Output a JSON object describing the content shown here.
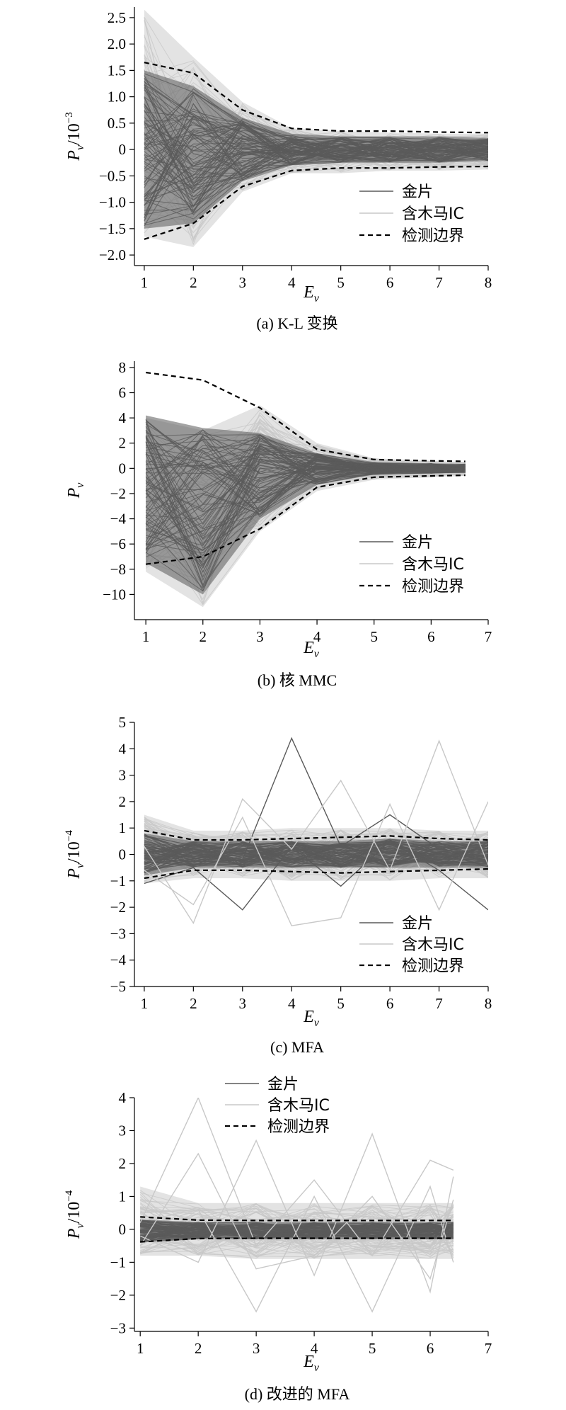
{
  "colors": {
    "gold": "#5a5a5a",
    "trojan": "#c8c8c8",
    "boundary": "#000000"
  },
  "legend_labels": {
    "gold": "金片",
    "trojan": "含木马IC",
    "boundary": "检测边界"
  },
  "chart_data": [
    {
      "type": "line",
      "caption": "(a) K-L 变换",
      "xlabel": "E",
      "xlabel_sub": "v",
      "ylabel": "P",
      "ylabel_sub": "v",
      "ylabel_suffix": "/10",
      "ylabel_exp": "−3",
      "xlim": [
        0.8,
        8
      ],
      "ylim": [
        -2.2,
        2.7
      ],
      "xticks": [
        1,
        2,
        3,
        4,
        5,
        6,
        7,
        8
      ],
      "yticks": [
        -2.0,
        -1.5,
        -1.0,
        -0.5,
        0,
        0.5,
        1.0,
        1.5,
        2.0,
        2.5
      ],
      "ytick_labels": [
        "−2.0",
        "−1.5",
        "−1.0",
        "−0.5",
        "0",
        "0.5",
        "1.0",
        "1.5",
        "2.0",
        "2.5"
      ],
      "legend_position": "lower-right",
      "series": [
        {
          "name": "检测边界",
          "style": "dashed",
          "x": [
            1,
            2,
            3,
            4,
            5,
            6,
            7,
            8
          ],
          "y": [
            1.65,
            1.45,
            0.75,
            0.4,
            0.35,
            0.35,
            0.33,
            0.32
          ]
        },
        {
          "name": "检测边界",
          "style": "dashed",
          "x": [
            1,
            2,
            3,
            4,
            5,
            6,
            7,
            8
          ],
          "y": [
            -1.7,
            -1.4,
            -0.7,
            -0.4,
            -0.35,
            -0.35,
            -0.33,
            -0.32
          ]
        },
        {
          "name": "金片",
          "style": "envelope",
          "x": [
            1,
            2,
            3,
            4,
            5,
            6,
            7,
            8
          ],
          "y_upper": [
            1.5,
            1.2,
            0.6,
            0.3,
            0.25,
            0.25,
            0.25,
            0.22
          ],
          "y_lower": [
            -1.5,
            -1.4,
            -0.6,
            -0.3,
            -0.25,
            -0.25,
            -0.25,
            -0.22
          ]
        },
        {
          "name": "含木马IC",
          "style": "envelope",
          "x": [
            1,
            2,
            3,
            4,
            5,
            6,
            7,
            8
          ],
          "y_upper": [
            2.65,
            1.75,
            0.9,
            0.4,
            0.35,
            0.32,
            0.3,
            0.3
          ],
          "y_lower": [
            -1.65,
            -1.85,
            -0.8,
            -0.45,
            -0.45,
            -0.4,
            -0.4,
            -0.38
          ]
        }
      ]
    },
    {
      "type": "line",
      "caption": "(b) 核 MMC",
      "xlabel": "E",
      "xlabel_sub": "v",
      "ylabel": "P",
      "ylabel_sub": "v",
      "ylabel_suffix": "",
      "ylabel_exp": "",
      "xlim": [
        0.8,
        7
      ],
      "ylim": [
        -12,
        8.5
      ],
      "xticks": [
        1,
        2,
        3,
        4,
        5,
        6,
        7
      ],
      "yticks": [
        -10,
        -8,
        -6,
        -4,
        -2,
        0,
        2,
        4,
        6,
        8
      ],
      "ytick_labels": [
        "−10",
        "−8",
        "−6",
        "−4",
        "−2",
        "0",
        "2",
        "4",
        "6",
        "8"
      ],
      "legend_position": "lower-right",
      "series": [
        {
          "name": "检测边界",
          "style": "dashed",
          "x": [
            1,
            2,
            3,
            4,
            5,
            6,
            6.6
          ],
          "y": [
            7.6,
            7.0,
            4.8,
            1.5,
            0.7,
            0.6,
            0.55
          ]
        },
        {
          "name": "检测边界",
          "style": "dashed",
          "x": [
            1,
            2,
            3,
            4,
            5,
            6,
            6.6
          ],
          "y": [
            -7.6,
            -7.0,
            -4.8,
            -1.5,
            -0.7,
            -0.6,
            -0.55
          ]
        },
        {
          "name": "金片",
          "style": "envelope",
          "x": [
            1,
            2,
            3,
            4,
            5,
            6,
            6.6
          ],
          "y_upper": [
            4.2,
            3.2,
            2.8,
            1.2,
            0.5,
            0.4,
            0.35
          ],
          "y_lower": [
            -7.5,
            -10.0,
            -4.0,
            -1.3,
            -0.5,
            -0.4,
            -0.35
          ]
        },
        {
          "name": "含木马IC",
          "style": "envelope",
          "x": [
            1,
            2,
            3,
            4,
            5,
            6,
            6.6
          ],
          "y_upper": [
            4.0,
            3.0,
            5.0,
            2.0,
            0.8,
            0.6,
            0.5
          ],
          "y_lower": [
            -8.2,
            -11.0,
            -5.0,
            -1.8,
            -0.9,
            -0.7,
            -0.6
          ]
        }
      ]
    },
    {
      "type": "line",
      "caption": "(c) MFA",
      "xlabel": "E",
      "xlabel_sub": "v",
      "ylabel": "P",
      "ylabel_sub": "v",
      "ylabel_suffix": "/10",
      "ylabel_exp": "−4",
      "xlim": [
        0.8,
        8
      ],
      "ylim": [
        -5,
        5
      ],
      "xticks": [
        1,
        2,
        3,
        4,
        5,
        6,
        7,
        8
      ],
      "yticks": [
        -5,
        -4,
        -3,
        -2,
        -1,
        0,
        1,
        2,
        3,
        4,
        5
      ],
      "ytick_labels": [
        "−5",
        "−4",
        "−3",
        "−2",
        "−1",
        "0",
        "1",
        "2",
        "3",
        "4",
        "5"
      ],
      "legend_position": "lower-right",
      "series": [
        {
          "name": "检测边界",
          "style": "dashed",
          "x": [
            1,
            2,
            3,
            4,
            5,
            6,
            7,
            8
          ],
          "y": [
            0.9,
            0.55,
            0.55,
            0.6,
            0.65,
            0.7,
            0.6,
            0.55
          ]
        },
        {
          "name": "检测边界",
          "style": "dashed",
          "x": [
            1,
            2,
            3,
            4,
            5,
            6,
            7,
            8
          ],
          "y": [
            -0.9,
            -0.6,
            -0.6,
            -0.65,
            -0.7,
            -0.65,
            -0.6,
            -0.55
          ]
        },
        {
          "name": "金片",
          "style": "envelope",
          "x": [
            1,
            2,
            3,
            4,
            5,
            6,
            7,
            8
          ],
          "y_upper": [
            0.8,
            0.5,
            0.5,
            0.5,
            0.5,
            0.6,
            0.5,
            0.5
          ],
          "y_lower": [
            -0.8,
            -0.5,
            -0.5,
            -0.5,
            -0.5,
            -0.5,
            -0.5,
            -0.5
          ]
        },
        {
          "name": "含木马IC",
          "style": "envelope",
          "x": [
            1,
            2,
            3,
            4,
            5,
            6,
            7,
            8
          ],
          "y_upper": [
            1.5,
            0.9,
            0.9,
            1.0,
            1.0,
            1.0,
            0.9,
            0.9
          ],
          "y_lower": [
            -1.1,
            -0.9,
            -0.9,
            -1.0,
            -1.0,
            -1.0,
            -0.9,
            -0.9
          ]
        },
        {
          "name": "金片",
          "style": "line",
          "x": [
            1,
            2,
            3,
            4,
            5,
            6,
            7,
            8
          ],
          "y": [
            0.1,
            0.2,
            -0.2,
            4.4,
            0.3,
            1.5,
            0.2,
            0.5
          ]
        },
        {
          "name": "金片",
          "style": "line",
          "x": [
            1,
            2,
            3,
            4,
            5,
            6,
            7,
            8
          ],
          "y": [
            -1.1,
            -0.5,
            -2.1,
            0.3,
            -1.2,
            0.5,
            -0.6,
            -2.1
          ]
        },
        {
          "name": "含木马IC",
          "style": "line",
          "x": [
            1,
            2,
            3,
            4,
            5,
            6,
            7,
            8
          ],
          "y": [
            0.3,
            -2.6,
            2.1,
            0.2,
            2.8,
            -0.6,
            4.3,
            -0.4
          ]
        },
        {
          "name": "含木马IC",
          "style": "line",
          "x": [
            1,
            2,
            3,
            4,
            5,
            6,
            7,
            8
          ],
          "y": [
            -0.6,
            -1.9,
            1.4,
            -2.7,
            -2.4,
            1.9,
            -2.1,
            2.0
          ]
        }
      ]
    },
    {
      "type": "line",
      "caption": "(d) 改进的 MFA",
      "xlabel": "E",
      "xlabel_sub": "v",
      "ylabel": "P",
      "ylabel_sub": "v",
      "ylabel_suffix": "/10",
      "ylabel_exp": "−4",
      "xlim": [
        0.9,
        7
      ],
      "ylim": [
        -3.1,
        4
      ],
      "xticks": [
        1,
        2,
        3,
        4,
        5,
        6,
        7
      ],
      "yticks": [
        -3,
        -2,
        -1,
        0,
        1,
        2,
        3,
        4
      ],
      "ytick_labels": [
        "−3",
        "−2",
        "−1",
        "0",
        "1",
        "2",
        "3",
        "4"
      ],
      "legend_position": "top-center",
      "series": [
        {
          "name": "检测边界",
          "style": "dashed",
          "x": [
            1,
            2,
            3,
            4,
            5,
            6,
            6.4
          ],
          "y": [
            0.38,
            0.28,
            0.27,
            0.27,
            0.27,
            0.27,
            0.27
          ]
        },
        {
          "name": "检测边界",
          "style": "dashed",
          "x": [
            1,
            2,
            3,
            4,
            5,
            6,
            6.4
          ],
          "y": [
            -0.38,
            -0.28,
            -0.27,
            -0.27,
            -0.27,
            -0.27,
            -0.27
          ]
        },
        {
          "name": "含木马IC",
          "style": "envelope",
          "x": [
            1,
            2,
            3,
            4,
            5,
            6,
            6.4
          ],
          "y_upper": [
            1.3,
            0.8,
            0.8,
            0.8,
            0.8,
            0.8,
            0.8
          ],
          "y_lower": [
            -0.8,
            -0.8,
            -0.9,
            -0.9,
            -0.9,
            -0.9,
            -0.9
          ]
        },
        {
          "name": "金片",
          "style": "envelope",
          "x": [
            1,
            2,
            3,
            4,
            5,
            6,
            6.4
          ],
          "y_upper": [
            0.3,
            0.22,
            0.22,
            0.22,
            0.22,
            0.22,
            0.22
          ],
          "y_lower": [
            -0.4,
            -0.3,
            -0.3,
            -0.3,
            -0.3,
            -0.3,
            -0.3
          ]
        },
        {
          "name": "含木马IC",
          "style": "line",
          "x": [
            1,
            2,
            3,
            4,
            5,
            6,
            6.4
          ],
          "y": [
            0.2,
            4.0,
            -0.5,
            1.5,
            -0.8,
            2.1,
            1.8
          ]
        },
        {
          "name": "含木马IC",
          "style": "line",
          "x": [
            1,
            2,
            3,
            4,
            5,
            6,
            6.4
          ],
          "y": [
            -0.2,
            -1.0,
            2.7,
            -1.4,
            2.9,
            -1.9,
            1.6
          ]
        },
        {
          "name": "含木马IC",
          "style": "line",
          "x": [
            1,
            2,
            3,
            4,
            5,
            6,
            6.4
          ],
          "y": [
            0.5,
            0.6,
            -2.5,
            1.0,
            -2.5,
            1.3,
            -1.0
          ]
        },
        {
          "name": "含木马IC",
          "style": "line",
          "x": [
            1,
            2,
            3,
            4,
            5,
            6,
            6.4
          ],
          "y": [
            -0.5,
            2.3,
            -1.2,
            -0.8,
            1.0,
            -1.5,
            0.9
          ]
        }
      ]
    }
  ]
}
